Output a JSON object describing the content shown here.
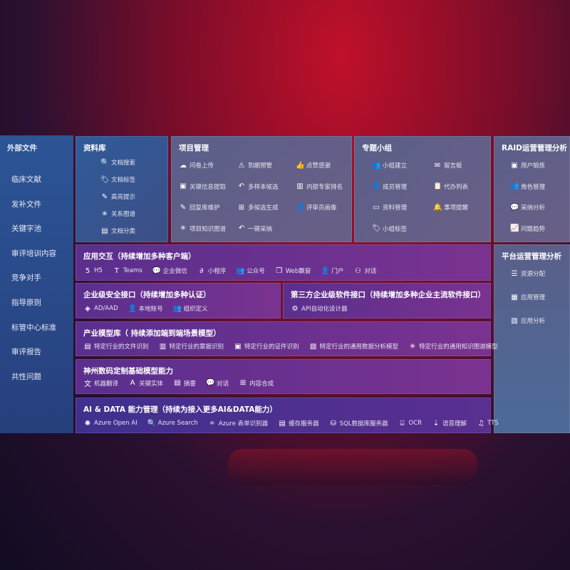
{
  "sidebar": {
    "title": "外部文件",
    "items": [
      "临床文献",
      "发补文件",
      "关键字池",
      "审评培训内容",
      "竞争对手",
      "指导原则",
      "标管中心标准",
      "审评报告",
      "共性问题"
    ]
  },
  "library": {
    "title": "资料库",
    "items": [
      {
        "icon": "doc-search-icon",
        "g": "🔍",
        "label": "文档搜索"
      },
      {
        "icon": "tag-icon",
        "g": "🏷",
        "label": "文档标签"
      },
      {
        "icon": "pen-icon",
        "g": "✎",
        "label": "高亮提示"
      },
      {
        "icon": "graph-icon",
        "g": "✳",
        "label": "关系图谱"
      },
      {
        "icon": "doc-category-icon",
        "g": "▤",
        "label": "文档分类"
      }
    ]
  },
  "project": {
    "title": "项目管理",
    "items": [
      {
        "icon": "cloud-upload-icon",
        "g": "☁",
        "label": "问卷上传"
      },
      {
        "icon": "alarm-icon",
        "g": "⚠",
        "label": "到期预警"
      },
      {
        "icon": "thumbs-up-icon",
        "g": "👍",
        "label": "点赞感谢"
      },
      {
        "icon": "extract-icon",
        "g": "▣",
        "label": "关键信息提取"
      },
      {
        "icon": "reply-icon",
        "g": "↶",
        "label": "多样本候选"
      },
      {
        "icon": "ranking-icon",
        "g": "▥",
        "label": "内部专家排名"
      },
      {
        "icon": "edit-icon",
        "g": "✎",
        "label": "回复库维护"
      },
      {
        "icon": "puzzle-icon",
        "g": "⊞",
        "label": "多候选生成"
      },
      {
        "icon": "person-icon",
        "g": "👤",
        "label": "评审员画像"
      },
      {
        "icon": "graph-icon",
        "g": "✳",
        "label": "项目知识图谱"
      },
      {
        "icon": "reply-icon",
        "g": "↶",
        "label": "一键采纳"
      }
    ]
  },
  "group": {
    "title": "专题小组",
    "items": [
      {
        "icon": "group-icon",
        "g": "👥",
        "label": "小组建立"
      },
      {
        "icon": "bbs-icon",
        "g": "✉",
        "label": "留言板"
      },
      {
        "icon": "member-icon",
        "g": "👤",
        "label": "成员管理"
      },
      {
        "icon": "clipboard-icon",
        "g": "📋",
        "label": "代办列表"
      },
      {
        "icon": "folder-icon",
        "g": "▭",
        "label": "资料管理"
      },
      {
        "icon": "bell-icon",
        "g": "🔔",
        "label": "事项提醒"
      },
      {
        "icon": "tag-icon",
        "g": "🏷",
        "label": "小组标签"
      }
    ]
  },
  "raid": {
    "title": "RAID运营管理分析",
    "items": [
      {
        "icon": "id-card-icon",
        "g": "▣",
        "label": "用户锻炼"
      },
      {
        "icon": "role-icon",
        "g": "👥",
        "label": "角色管理"
      },
      {
        "icon": "qa-icon",
        "g": "💬",
        "label": "采纳分析"
      },
      {
        "icon": "trend-icon",
        "g": "📈",
        "label": "问题趋势"
      }
    ]
  },
  "platform": {
    "title": "平台运营管理分析",
    "items": [
      {
        "icon": "list-icon",
        "g": "☰",
        "label": "资源分配"
      },
      {
        "icon": "apps-icon",
        "g": "▦",
        "label": "应用管理"
      },
      {
        "icon": "analysis-icon",
        "g": "▧",
        "label": "应用分析"
      }
    ]
  },
  "interaction": {
    "title": "应用交互（持续增加多种客户端）",
    "items": [
      {
        "icon": "html5-icon",
        "g": "5",
        "label": "H5"
      },
      {
        "icon": "teams-icon",
        "g": "T",
        "label": "Teams"
      },
      {
        "icon": "wecom-icon",
        "g": "💬",
        "label": "企业微信"
      },
      {
        "icon": "miniprogram-icon",
        "g": "∂",
        "label": "小程序"
      },
      {
        "icon": "public-account-icon",
        "g": "👥",
        "label": "公众号"
      },
      {
        "icon": "window-icon",
        "g": "❐",
        "label": "Web飘窗"
      },
      {
        "icon": "portal-icon",
        "g": "👤",
        "label": "门户"
      },
      {
        "icon": "dialog-icon",
        "g": "⚇",
        "label": "对话"
      }
    ]
  },
  "security": {
    "title": "企业级安全接口（持续增加多种认证）",
    "items": [
      {
        "icon": "aad-icon",
        "g": "◈",
        "label": "AD/AAD"
      },
      {
        "icon": "local-account-icon",
        "g": "👤",
        "label": "本地账号"
      },
      {
        "icon": "org-icon",
        "g": "👥",
        "label": "组织定义"
      }
    ]
  },
  "thirdparty": {
    "title": "第三方企业级软件接口（持续增加多种企业主流软件接口）",
    "items": [
      {
        "icon": "gear-icon",
        "g": "⚙",
        "label": "API自动化设计器"
      }
    ]
  },
  "industry": {
    "title": "产业模型库（ 持续添加端到端场景模型）",
    "items": [
      {
        "icon": "file-icon",
        "g": "▤",
        "label": "特定行业的文件识别"
      },
      {
        "icon": "receipt-icon",
        "g": "▥",
        "label": "特定行业的票据识别"
      },
      {
        "icon": "id-card-icon",
        "g": "▣",
        "label": "特定行业的证件识别"
      },
      {
        "icon": "chart-icon",
        "g": "▧",
        "label": "特定行业的通用数据分析模型"
      },
      {
        "icon": "graph-icon",
        "g": "✳",
        "label": "特定行业的通用知识图谱模型"
      }
    ]
  },
  "base": {
    "title": "神州数码定制基础模型能力",
    "items": [
      {
        "icon": "translate-icon",
        "g": "文",
        "label": "机器翻译"
      },
      {
        "icon": "entity-icon",
        "g": "A",
        "label": "关键实体"
      },
      {
        "icon": "summary-icon",
        "g": "▤",
        "label": "摘要"
      },
      {
        "icon": "chat-icon",
        "g": "💬",
        "label": "对话"
      },
      {
        "icon": "compose-icon",
        "g": "⊞",
        "label": "内容合成"
      }
    ]
  },
  "aidata": {
    "title": "AI & DATA 能力管理（持续为接入更多AI&DATA能力）",
    "items": [
      {
        "icon": "openai-icon",
        "g": "✺",
        "label": "Azure Open AI"
      },
      {
        "icon": "search-icon",
        "g": "🔍",
        "label": "Azure Search"
      },
      {
        "icon": "form-recognizer-icon",
        "g": "⌗",
        "label": "Azure 表单识别器"
      },
      {
        "icon": "cache-server-icon",
        "g": "▤",
        "label": "缓存服务器"
      },
      {
        "icon": "database-icon",
        "g": "⛁",
        "label": "SQL数据库服务器"
      },
      {
        "icon": "ocr-icon",
        "g": "⌸",
        "label": "OCR"
      },
      {
        "icon": "speech-icon",
        "g": "⇣",
        "label": "语音理解"
      },
      {
        "icon": "tts-icon",
        "g": "♫",
        "label": "TTS"
      }
    ]
  }
}
